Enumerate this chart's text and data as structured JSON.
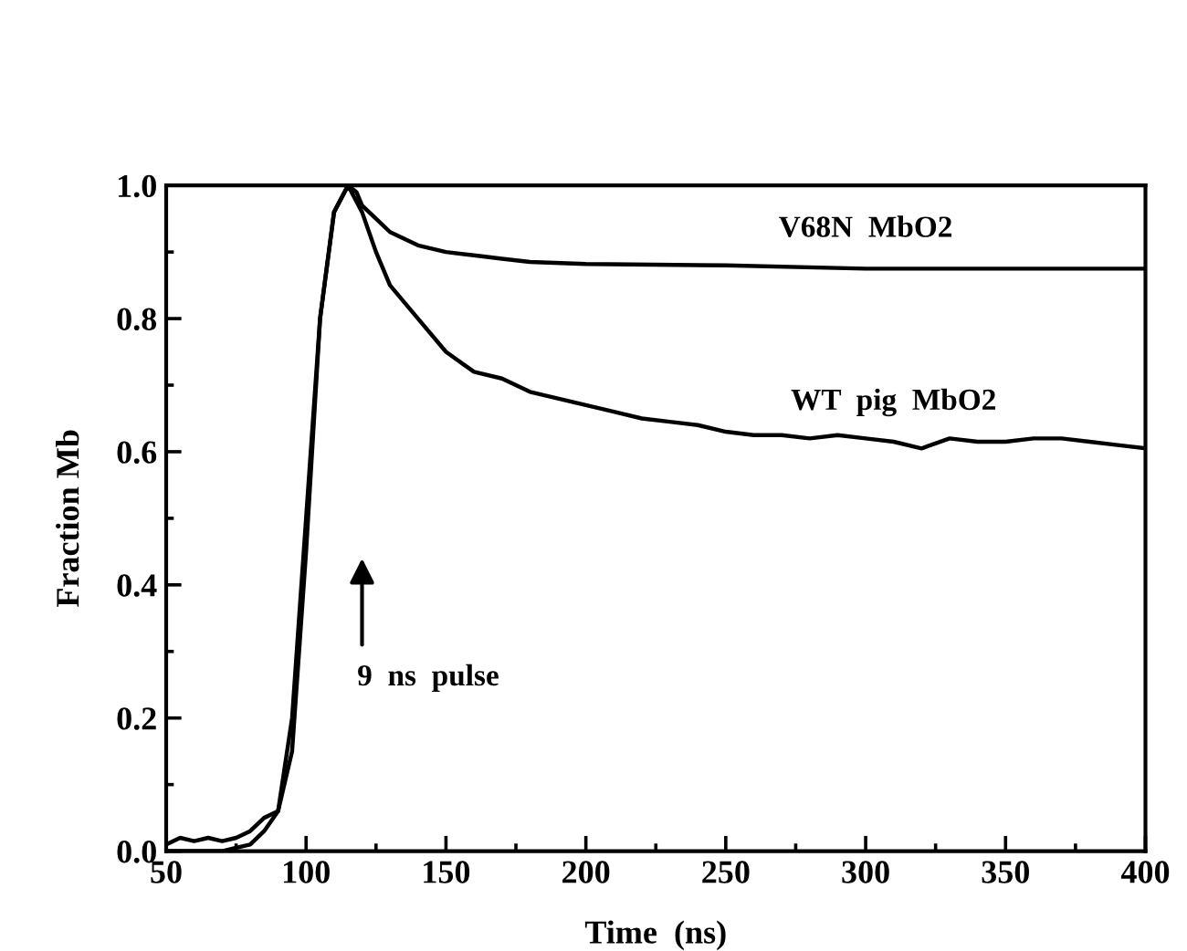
{
  "chart_data": {
    "type": "line",
    "xlabel": "Time  (ns)",
    "ylabel": "Fraction Mb",
    "xlim": [
      50,
      400
    ],
    "xticks": [
      50,
      100,
      150,
      200,
      250,
      300,
      350,
      400
    ],
    "ylim": [
      0,
      1.0
    ],
    "yticks": [
      {
        "value": 0,
        "label": "0.0"
      },
      0.2,
      0.4,
      0.6,
      0.8,
      {
        "value": 1.0,
        "label": "1.0"
      }
    ],
    "grid": false,
    "legend": false,
    "marker": "none",
    "line_style": "solid",
    "annotations": [
      "9  ns  pulse"
    ],
    "series": [
      {
        "name": "V68N  MbO2",
        "color": "#000000",
        "x": [
          50,
          60,
          70,
          75,
          80,
          85,
          90,
          95,
          100,
          105,
          110,
          115,
          118,
          120,
          125,
          130,
          140,
          150,
          160,
          170,
          180,
          200,
          250,
          300,
          350,
          400
        ],
        "values": [
          0.0,
          0.0,
          0.0,
          0.005,
          0.01,
          0.03,
          0.06,
          0.15,
          0.45,
          0.8,
          0.96,
          1.0,
          0.99,
          0.97,
          0.95,
          0.93,
          0.91,
          0.9,
          0.895,
          0.89,
          0.885,
          0.882,
          0.88,
          0.875,
          0.875,
          0.875
        ]
      },
      {
        "name": "WT  pig  MbO2",
        "color": "#000000",
        "x": [
          50,
          55,
          60,
          65,
          70,
          75,
          80,
          85,
          90,
          95,
          100,
          105,
          110,
          115,
          120,
          125,
          130,
          140,
          150,
          160,
          170,
          180,
          190,
          200,
          210,
          220,
          230,
          240,
          250,
          260,
          270,
          280,
          290,
          300,
          310,
          320,
          330,
          340,
          350,
          360,
          370,
          380,
          390,
          400
        ],
        "values": [
          0.01,
          0.02,
          0.015,
          0.02,
          0.015,
          0.02,
          0.03,
          0.05,
          0.06,
          0.2,
          0.5,
          0.8,
          0.96,
          1.0,
          0.96,
          0.9,
          0.85,
          0.8,
          0.75,
          0.72,
          0.71,
          0.69,
          0.68,
          0.67,
          0.66,
          0.65,
          0.645,
          0.64,
          0.63,
          0.625,
          0.625,
          0.62,
          0.625,
          0.62,
          0.615,
          0.605,
          0.62,
          0.615,
          0.615,
          0.62,
          0.62,
          0.615,
          0.61,
          0.605
        ]
      }
    ]
  }
}
